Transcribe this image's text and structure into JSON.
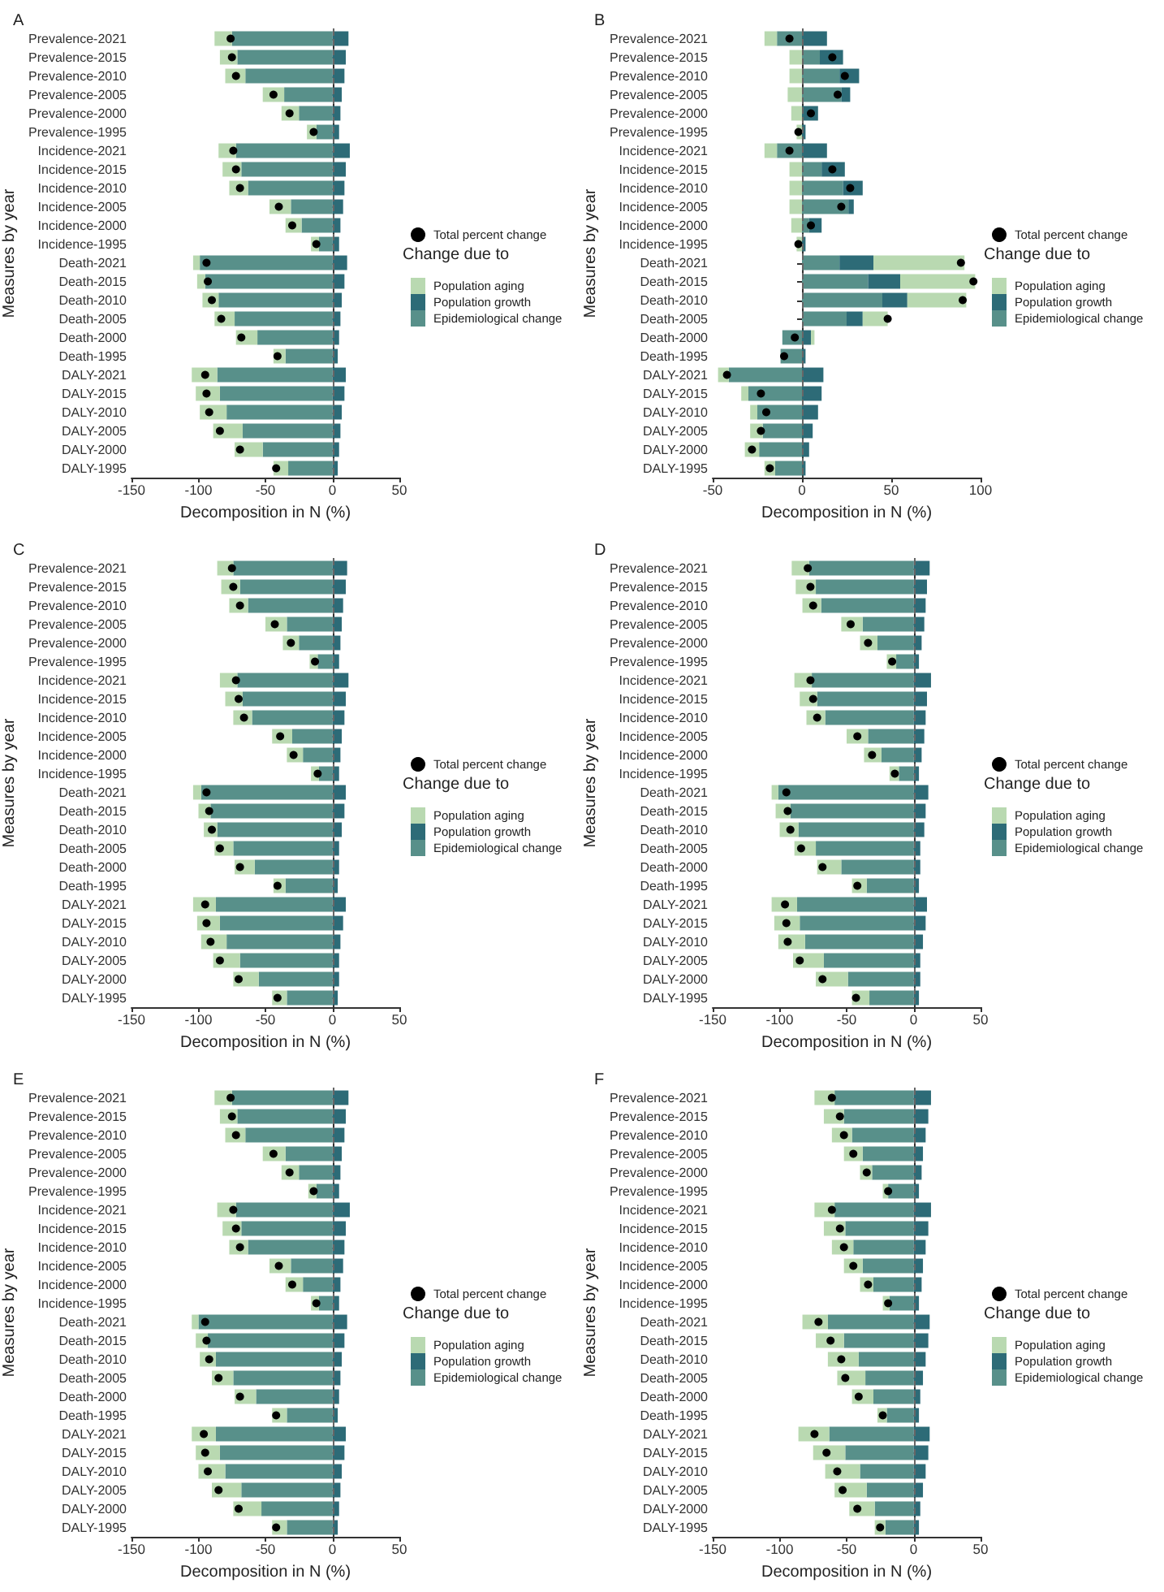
{
  "chart_data": [
    {
      "type": "bar",
      "title": "A",
      "xlabel": "Decomposition in N (%)",
      "ylabel": "Measures by year",
      "legend_title": "Change due to",
      "orientation": "horizontal",
      "stacked": true,
      "legend": "right",
      "grid": false,
      "marker": "circle",
      "categories": [
        "Prevalence-2021",
        "Prevalence-2015",
        "Prevalence-2010",
        "Prevalence-2005",
        "Prevalence-2000",
        "Prevalence-1995",
        "Incidence-2021",
        "Incidence-2015",
        "Incidence-2010",
        "Incidence-2005",
        "Incidence-2000",
        "Incidence-1995",
        "Death-2021",
        "Death-2015",
        "Death-2010",
        "Death-2005",
        "Death-2000",
        "Death-1995",
        "DALY-2021",
        "DALY-2015",
        "DALY-2010",
        "DALY-2005",
        "DALY-2000",
        "DALY-1995"
      ],
      "xlim": [
        -150,
        50
      ],
      "xticks": [
        -150,
        -100,
        -50,
        0,
        50
      ],
      "ref_lines": [
        {
          "axis": "x",
          "value": 0,
          "label": null,
          "color": "#666666",
          "line_style": "dashed"
        }
      ],
      "series": [
        {
          "name": "Epidemiological change",
          "color": "#58908a",
          "values": [
            -75,
            -71,
            -65,
            -36,
            -25,
            -12,
            -72,
            -68,
            -63,
            -31,
            -23,
            -10,
            -99,
            -95,
            -85,
            -73,
            -56,
            -35,
            -86,
            -84,
            -79,
            -67,
            -52,
            -33
          ]
        },
        {
          "name": "Population growth",
          "color": "#2d6b77",
          "values": [
            12,
            10,
            9,
            7,
            6,
            5,
            13,
            10,
            9,
            8,
            6,
            5,
            11,
            9,
            7,
            6,
            5,
            4,
            10,
            9,
            7,
            6,
            5,
            4
          ]
        },
        {
          "name": "Population aging",
          "color": "#b9d9b1",
          "values": [
            -13,
            -13,
            -15,
            -16,
            -13,
            -7,
            -13,
            -14,
            -14,
            -16,
            -12,
            -6,
            -5,
            -6,
            -12,
            -15,
            -16,
            -9,
            -19,
            -18,
            -20,
            -22,
            -21,
            -11
          ]
        },
        {
          "name": "Total percent change",
          "type": "scatter",
          "color": "#000000",
          "values": [
            -76,
            -75,
            -72,
            -44,
            -32,
            -14,
            -74,
            -72,
            -69,
            -40,
            -30,
            -12,
            -94,
            -93,
            -90,
            -83,
            -68,
            -41,
            -95,
            -94,
            -92,
            -84,
            -69,
            -42
          ]
        }
      ]
    },
    {
      "type": "bar",
      "title": "B",
      "xlabel": "Decomposition in N (%)",
      "ylabel": "Measures by year",
      "legend_title": "Change due to",
      "orientation": "horizontal",
      "stacked": true,
      "legend": "right",
      "grid": false,
      "marker": "circle",
      "categories": [
        "Prevalence-2021",
        "Prevalence-2015",
        "Prevalence-2010",
        "Prevalence-2005",
        "Prevalence-2000",
        "Prevalence-1995",
        "Incidence-2021",
        "Incidence-2015",
        "Incidence-2010",
        "Incidence-2005",
        "Incidence-2000",
        "Incidence-1995",
        "Death-2021",
        "Death-2015",
        "Death-2010",
        "Death-2005",
        "Death-2000",
        "Death-1995",
        "DALY-2021",
        "DALY-2015",
        "DALY-2010",
        "DALY-2005",
        "DALY-2000",
        "DALY-1995"
      ],
      "xlim": [
        -50,
        100
      ],
      "xticks": [
        -50,
        0,
        50,
        100
      ],
      "ref_lines": [
        {
          "axis": "x",
          "value": 0,
          "label": null,
          "color": "#666666",
          "line_style": "dashed"
        }
      ],
      "series": [
        {
          "name": "Epidemiological change",
          "color": "#58908a",
          "values": [
            -14,
            10,
            21,
            22,
            null,
            null,
            -14,
            11,
            23,
            26,
            4,
            null,
            21,
            37,
            45,
            25,
            -11,
            -12,
            -41,
            -30,
            -25,
            -22,
            -24,
            -15
          ]
        },
        {
          "name": "Population growth",
          "color": "#2d6b77",
          "values": [
            14,
            13,
            11,
            5,
            9,
            2,
            14,
            13,
            11,
            3,
            7,
            2,
            19,
            18,
            14,
            9,
            5,
            2,
            12,
            11,
            9,
            6,
            4,
            2
          ]
        },
        {
          "name": "Population aging",
          "color": "#b9d9b1",
          "values": [
            -7,
            -7,
            -7,
            -8,
            -6,
            -3,
            -7,
            -7,
            -7,
            -7,
            -6,
            -3,
            51,
            42,
            33,
            14,
            2,
            0,
            -6,
            -4,
            -4,
            -7,
            -8,
            -6
          ]
        },
        {
          "name": "Total percent change",
          "type": "scatter",
          "color": "#000000",
          "values": [
            -7,
            17,
            24,
            20,
            5,
            -2,
            -7,
            17,
            27,
            22,
            5,
            -2,
            89,
            96,
            90,
            48,
            -4,
            -10,
            -42,
            -23,
            -20,
            -23,
            -28,
            -18
          ]
        }
      ]
    },
    {
      "type": "bar",
      "title": "C",
      "xlabel": "Decomposition in N (%)",
      "ylabel": "Measures by year",
      "legend_title": "Change due to",
      "orientation": "horizontal",
      "stacked": true,
      "legend": "right",
      "grid": false,
      "marker": "circle",
      "categories": [
        "Prevalence-2021",
        "Prevalence-2015",
        "Prevalence-2010",
        "Prevalence-2005",
        "Prevalence-2000",
        "Prevalence-1995",
        "Incidence-2021",
        "Incidence-2015",
        "Incidence-2010",
        "Incidence-2005",
        "Incidence-2000",
        "Incidence-1995",
        "Death-2021",
        "Death-2015",
        "Death-2010",
        "Death-2005",
        "Death-2000",
        "Death-1995",
        "DALY-2021",
        "DALY-2015",
        "DALY-2010",
        "DALY-2005",
        "DALY-2000",
        "DALY-1995"
      ],
      "xlim": [
        -150,
        50
      ],
      "xticks": [
        -150,
        -100,
        -50,
        0,
        50
      ],
      "ref_lines": [
        {
          "axis": "x",
          "value": 0,
          "label": null,
          "color": "#666666",
          "line_style": "dashed"
        }
      ],
      "series": [
        {
          "name": "Epidemiological change",
          "color": "#58908a",
          "values": [
            -74,
            -69,
            -63,
            -34,
            -25,
            -11,
            -71,
            -67,
            -60,
            -30,
            -22,
            -10,
            -98,
            -91,
            -86,
            -74,
            -58,
            -35,
            -87,
            -84,
            -79,
            -69,
            -55,
            -34
          ]
        },
        {
          "name": "Population growth",
          "color": "#2d6b77",
          "values": [
            11,
            10,
            8,
            7,
            6,
            5,
            12,
            10,
            9,
            7,
            6,
            5,
            10,
            9,
            7,
            5,
            5,
            4,
            10,
            8,
            6,
            5,
            5,
            4
          ]
        },
        {
          "name": "Population aging",
          "color": "#b9d9b1",
          "values": [
            -12,
            -14,
            -14,
            -16,
            -12,
            -6,
            -13,
            -13,
            -14,
            -15,
            -12,
            -6,
            -6,
            -9,
            -10,
            -14,
            -15,
            -9,
            -17,
            -17,
            -19,
            -20,
            -19,
            -11
          ]
        },
        {
          "name": "Total percent change",
          "type": "scatter",
          "color": "#000000",
          "values": [
            -75,
            -74,
            -69,
            -43,
            -31,
            -13,
            -72,
            -70,
            -66,
            -39,
            -29,
            -11,
            -94,
            -92,
            -90,
            -84,
            -69,
            -41,
            -95,
            -94,
            -91,
            -84,
            -70,
            -41
          ]
        }
      ]
    },
    {
      "type": "bar",
      "title": "D",
      "xlabel": "Decomposition in N (%)",
      "ylabel": "Measures by year",
      "legend_title": "Change due to",
      "orientation": "horizontal",
      "stacked": true,
      "legend": "right",
      "grid": false,
      "marker": "circle",
      "categories": [
        "Prevalence-2021",
        "Prevalence-2015",
        "Prevalence-2010",
        "Prevalence-2005",
        "Prevalence-2000",
        "Prevalence-1995",
        "Incidence-2021",
        "Incidence-2015",
        "Incidence-2010",
        "Incidence-2005",
        "Incidence-2000",
        "Incidence-1995",
        "Death-2021",
        "Death-2015",
        "Death-2010",
        "Death-2005",
        "Death-2000",
        "Death-1995",
        "DALY-2021",
        "DALY-2015",
        "DALY-2010",
        "DALY-2005",
        "DALY-2000",
        "DALY-1995"
      ],
      "xlim": [
        -150,
        50
      ],
      "xticks": [
        -150,
        -100,
        -50,
        0,
        50
      ],
      "ref_lines": [
        {
          "axis": "x",
          "value": 0,
          "label": null,
          "color": "#666666",
          "line_style": "dashed"
        }
      ],
      "series": [
        {
          "name": "Epidemiological change",
          "color": "#58908a",
          "values": [
            -78,
            -73,
            -69,
            -38,
            -27,
            -13,
            -76,
            -72,
            -66,
            -34,
            -24,
            -11,
            -101,
            -92,
            -86,
            -73,
            -54,
            -35,
            -87,
            -85,
            -81,
            -67,
            -49,
            -33
          ]
        },
        {
          "name": "Population growth",
          "color": "#2d6b77",
          "values": [
            12,
            10,
            9,
            8,
            6,
            4,
            13,
            10,
            9,
            8,
            6,
            4,
            11,
            9,
            8,
            5,
            5,
            4,
            10,
            9,
            7,
            5,
            5,
            4
          ]
        },
        {
          "name": "Population aging",
          "color": "#b9d9b1",
          "values": [
            -13,
            -15,
            -14,
            -16,
            -13,
            -7,
            -13,
            -13,
            -14,
            -16,
            -13,
            -7,
            -5,
            -11,
            -14,
            -16,
            -18,
            -11,
            -19,
            -19,
            -20,
            -23,
            -24,
            -13
          ]
        },
        {
          "name": "Total percent change",
          "type": "scatter",
          "color": "#000000",
          "values": [
            -79,
            -77,
            -75,
            -47,
            -34,
            -16,
            -77,
            -75,
            -72,
            -42,
            -31,
            -14,
            -95,
            -94,
            -92,
            -84,
            -68,
            -42,
            -96,
            -95,
            -94,
            -85,
            -68,
            -43
          ]
        }
      ]
    },
    {
      "type": "bar",
      "title": "E",
      "xlabel": "Decomposition in N (%)",
      "ylabel": "Measures by year",
      "legend_title": "Change due to",
      "orientation": "horizontal",
      "stacked": true,
      "legend": "right",
      "grid": false,
      "marker": "circle",
      "categories": [
        "Prevalence-2021",
        "Prevalence-2015",
        "Prevalence-2010",
        "Prevalence-2005",
        "Prevalence-2000",
        "Prevalence-1995",
        "Incidence-2021",
        "Incidence-2015",
        "Incidence-2010",
        "Incidence-2005",
        "Incidence-2000",
        "Incidence-1995",
        "Death-2021",
        "Death-2015",
        "Death-2010",
        "Death-2005",
        "Death-2000",
        "Death-1995",
        "DALY-2021",
        "DALY-2015",
        "DALY-2010",
        "DALY-2005",
        "DALY-2000",
        "DALY-1995"
      ],
      "xlim": [
        -150,
        50
      ],
      "xticks": [
        -150,
        -100,
        -50,
        0,
        50
      ],
      "ref_lines": [
        {
          "axis": "x",
          "value": 0,
          "label": null,
          "color": "#666666",
          "line_style": "dashed"
        }
      ],
      "series": [
        {
          "name": "Epidemiological change",
          "color": "#58908a",
          "values": [
            -75,
            -71,
            -65,
            -35,
            -25,
            -12,
            -72,
            -68,
            -63,
            -31,
            -22,
            -10,
            -100,
            -93,
            -87,
            -74,
            -57,
            -34,
            -87,
            -84,
            -80,
            -68,
            -53,
            -34
          ]
        },
        {
          "name": "Population growth",
          "color": "#2d6b77",
          "values": [
            12,
            10,
            9,
            7,
            6,
            5,
            13,
            10,
            9,
            8,
            6,
            5,
            11,
            9,
            7,
            6,
            5,
            4,
            10,
            9,
            7,
            6,
            5,
            4
          ]
        },
        {
          "name": "Population aging",
          "color": "#b9d9b1",
          "values": [
            -13,
            -13,
            -15,
            -17,
            -13,
            -6,
            -14,
            -14,
            -14,
            -16,
            -13,
            -6,
            -5,
            -9,
            -12,
            -16,
            -16,
            -11,
            -18,
            -18,
            -20,
            -22,
            -21,
            -11
          ]
        },
        {
          "name": "Total percent change",
          "type": "scatter",
          "color": "#000000",
          "values": [
            -76,
            -75,
            -72,
            -44,
            -32,
            -14,
            -74,
            -72,
            -69,
            -40,
            -30,
            -12,
            -95,
            -94,
            -92,
            -85,
            -69,
            -42,
            -96,
            -95,
            -93,
            -85,
            -70,
            -42
          ]
        }
      ]
    },
    {
      "type": "bar",
      "title": "F",
      "xlabel": "Decomposition in N (%)",
      "ylabel": "Measures by year",
      "legend_title": "Change due to",
      "orientation": "horizontal",
      "stacked": true,
      "legend": "right",
      "grid": false,
      "marker": "circle",
      "categories": [
        "Prevalence-2021",
        "Prevalence-2015",
        "Prevalence-2010",
        "Prevalence-2005",
        "Prevalence-2000",
        "Prevalence-1995",
        "Incidence-2021",
        "Incidence-2015",
        "Incidence-2010",
        "Incidence-2005",
        "Incidence-2000",
        "Incidence-1995",
        "Death-2021",
        "Death-2015",
        "Death-2010",
        "Death-2005",
        "Death-2000",
        "Death-1995",
        "DALY-2021",
        "DALY-2015",
        "DALY-2010",
        "DALY-2005",
        "DALY-2000",
        "DALY-1995"
      ],
      "xlim": [
        -150,
        50
      ],
      "xticks": [
        -150,
        -100,
        -50,
        0,
        50
      ],
      "ref_lines": [
        {
          "axis": "x",
          "value": 0,
          "label": null,
          "color": "#666666",
          "line_style": "dashed"
        }
      ],
      "series": [
        {
          "name": "Epidemiological change",
          "color": "#58908a",
          "values": [
            -59,
            -52,
            -46,
            -38,
            -31,
            -19,
            -59,
            -51,
            -45,
            -38,
            -30,
            -18,
            -64,
            -52,
            -41,
            -36,
            -30,
            -20,
            -63,
            -51,
            -40,
            -35,
            -29,
            -21
          ]
        },
        {
          "name": "Population growth",
          "color": "#2d6b77",
          "values": [
            13,
            11,
            9,
            7,
            6,
            4,
            13,
            11,
            9,
            7,
            6,
            4,
            12,
            11,
            9,
            7,
            5,
            4,
            12,
            11,
            9,
            7,
            5,
            4
          ]
        },
        {
          "name": "Population aging",
          "color": "#b9d9b1",
          "values": [
            -15,
            -15,
            -15,
            -14,
            -9,
            -4,
            -15,
            -16,
            -16,
            -14,
            -10,
            -5,
            -19,
            -21,
            -23,
            -21,
            -16,
            -7,
            -23,
            -24,
            -26,
            -24,
            -19,
            -8
          ]
        },
        {
          "name": "Total percent change",
          "type": "scatter",
          "color": "#000000",
          "values": [
            -61,
            -55,
            -52,
            -45,
            -35,
            -19,
            -61,
            -55,
            -52,
            -45,
            -34,
            -19,
            -71,
            -62,
            -54,
            -51,
            -41,
            -23,
            -74,
            -65,
            -57,
            -53,
            -42,
            -25
          ]
        }
      ]
    }
  ]
}
